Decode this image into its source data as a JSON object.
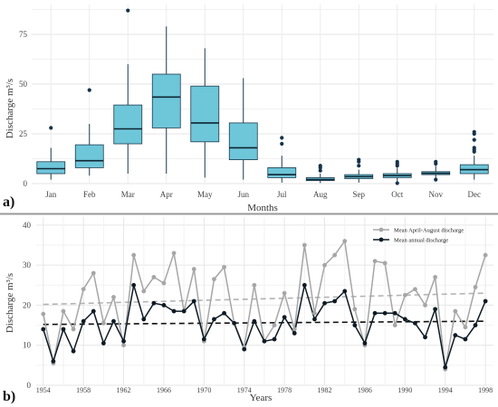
{
  "chart_data": [
    {
      "type": "box",
      "panel_label": "a)",
      "xlabel": "Months",
      "ylabel": "Discharge m³/s",
      "ylim": [
        0,
        90
      ],
      "yticks": [
        0,
        25,
        50,
        75
      ],
      "grid": true,
      "box_color": "#6ec6d9",
      "categories": [
        "Jan",
        "Feb",
        "Mar",
        "Apr",
        "May",
        "Jun",
        "Jul",
        "Aug",
        "Sep",
        "Oct",
        "Nov",
        "Dec"
      ],
      "boxes": [
        {
          "min": 2,
          "q1": 5,
          "median": 7.5,
          "q3": 11,
          "max": 18,
          "outliers": [
            28
          ]
        },
        {
          "min": 4,
          "q1": 8,
          "median": 11.5,
          "q3": 19.5,
          "max": 30,
          "outliers": [
            47
          ]
        },
        {
          "min": 5,
          "q1": 20,
          "median": 27.5,
          "q3": 39.5,
          "max": 60,
          "outliers": [
            87
          ]
        },
        {
          "min": 5,
          "q1": 28,
          "median": 43.5,
          "q3": 55,
          "max": 79,
          "outliers": []
        },
        {
          "min": 3,
          "q1": 21,
          "median": 30.5,
          "q3": 49,
          "max": 68,
          "outliers": []
        },
        {
          "min": 2,
          "q1": 12,
          "median": 18,
          "q3": 30.5,
          "max": 53,
          "outliers": []
        },
        {
          "min": 0.5,
          "q1": 3,
          "median": 4.5,
          "q3": 8,
          "max": 14,
          "outliers": [
            20,
            23
          ]
        },
        {
          "min": 0.3,
          "q1": 1.5,
          "median": 2,
          "q3": 3,
          "max": 5,
          "outliers": [
            6.5,
            8,
            9
          ]
        },
        {
          "min": 0.5,
          "q1": 2.5,
          "median": 3.5,
          "q3": 4.5,
          "max": 7,
          "outliers": [
            9,
            11,
            12
          ]
        },
        {
          "min": 0.5,
          "q1": 3,
          "median": 4,
          "q3": 5,
          "max": 8,
          "outliers": [
            0.2,
            9,
            10,
            11
          ]
        },
        {
          "min": 1.5,
          "q1": 4.5,
          "median": 5.2,
          "q3": 6,
          "max": 9,
          "outliers": [
            2,
            10,
            11
          ]
        },
        {
          "min": 2,
          "q1": 5,
          "median": 7,
          "q3": 9.5,
          "max": 14,
          "outliers": [
            16,
            17,
            18,
            22,
            25,
            26
          ]
        }
      ]
    },
    {
      "type": "line",
      "panel_label": "b)",
      "xlabel": "Years",
      "ylabel": "Discharge m³/s",
      "ylim": [
        0,
        42
      ],
      "yticks": [
        0,
        10,
        20,
        30,
        40
      ],
      "xlim": [
        1953.3,
        1998.8
      ],
      "xticks": [
        1954,
        1958,
        1962,
        1966,
        1970,
        1974,
        1978,
        1982,
        1986,
        1990,
        1994,
        1998
      ],
      "grid": true,
      "legend_position": "top-right",
      "x": [
        1954,
        1955,
        1956,
        1957,
        1958,
        1959,
        1960,
        1961,
        1962,
        1963,
        1964,
        1965,
        1966,
        1967,
        1968,
        1969,
        1970,
        1971,
        1972,
        1973,
        1974,
        1975,
        1976,
        1977,
        1978,
        1979,
        1980,
        1981,
        1982,
        1983,
        1984,
        1985,
        1986,
        1987,
        1988,
        1989,
        1990,
        1991,
        1992,
        1993,
        1994,
        1995,
        1996,
        1997,
        1998
      ],
      "series": [
        {
          "name": "Mean April-August discharge",
          "color": "#a6a6a6",
          "values": [
            17.8,
            5.5,
            18.5,
            14,
            24,
            28,
            15.5,
            22,
            10,
            32.5,
            23.5,
            27,
            25.5,
            33,
            18.5,
            29,
            11,
            26.5,
            29.5,
            15.5,
            9.5,
            25,
            11,
            15,
            23,
            14,
            35,
            18,
            30,
            32.5,
            36,
            19,
            10,
            31,
            30.5,
            15,
            22.5,
            24,
            20,
            27,
            4,
            18.5,
            14.5,
            24.5,
            32.5
          ],
          "trend": [
            20.2,
            23.0
          ]
        },
        {
          "name": "Mean annual discharge",
          "color": "#0d1a24",
          "values": [
            14,
            6,
            14,
            8.5,
            16,
            18.5,
            10.5,
            16,
            11,
            25,
            16.5,
            20.5,
            20,
            18.5,
            18.5,
            21,
            11.5,
            16.5,
            18,
            15.5,
            9,
            16,
            11,
            11.5,
            17,
            13,
            25,
            16.5,
            20.5,
            21,
            23.5,
            15,
            10.5,
            18,
            18,
            18,
            16.5,
            15.5,
            12,
            19,
            4.5,
            12.5,
            11.5,
            15,
            21
          ],
          "trend": [
            15.2,
            16.0
          ]
        }
      ]
    }
  ]
}
